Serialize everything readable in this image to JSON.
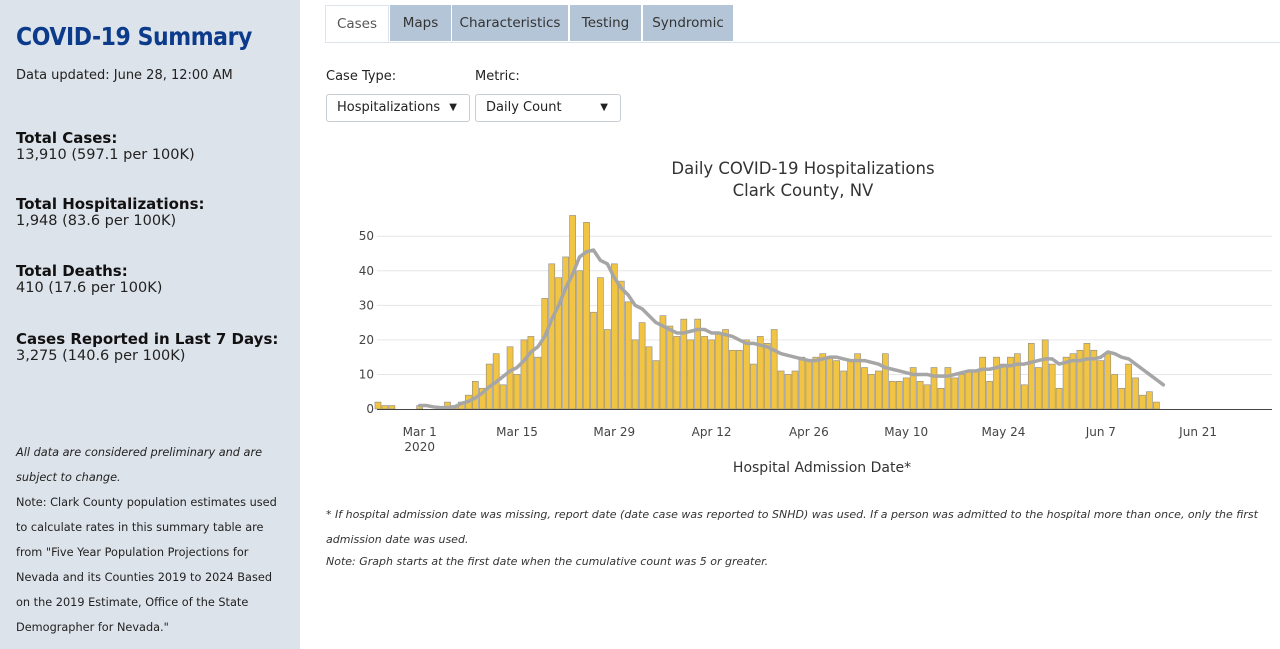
{
  "sidebar": {
    "title": "COVID-19 Summary",
    "updated": "Data updated: June 28, 12:00 AM",
    "stats": [
      {
        "label": "Total Cases:",
        "value": "13,910 (597.1 per 100K)"
      },
      {
        "label": "Total Hospitalizations:",
        "value": "1,948 (83.6 per 100K)"
      },
      {
        "label": "Total Deaths:",
        "value": "410 (17.6 per 100K)"
      },
      {
        "label": "Cases Reported in Last 7 Days:",
        "value": "3,275 (140.6 per 100K)"
      }
    ],
    "preliminary": "All data are considered preliminary and are subject to change.",
    "population_note": "Note: Clark County population estimates used to calculate rates in this summary table are from \"Five Year Population Projections for Nevada and its Counties 2019 to 2024 Based on the 2019 Estimate, Office of the State Demographer for Nevada.\""
  },
  "tabs": [
    "Cases",
    "Maps",
    "Characteristics",
    "Testing",
    "Syndromic"
  ],
  "active_tab": "Cases",
  "controls": {
    "case_type_label": "Case Type:",
    "case_type_value": "Hospitalizations",
    "metric_label": "Metric:",
    "metric_value": "Daily Count"
  },
  "footnote": "* If hospital admission date was missing, report date (date case was reported to SNHD) was used. If a person was admitted to the hospital more than once, only the first admission date was used.",
  "footnote2": "Note: Graph starts at the first date when the cumulative count was 5 or greater.",
  "colors": {
    "bar": "#f2c443",
    "bar_stroke": "#8a8a8a",
    "line": "#a6a6a6",
    "title": "#0c3b8c",
    "sidebar_bg": "#dde3ea",
    "tab_bg": "#b4c5d8"
  },
  "chart_data": {
    "type": "bar",
    "title": "Daily COVID-19 Hospitalizations",
    "subtitle": "Clark County, NV",
    "xlabel": "Hospital Admission Date*",
    "ylabel": "",
    "ylim": [
      0,
      57
    ],
    "yticks": [
      0,
      10,
      20,
      30,
      40,
      50
    ],
    "x_start": "2020-02-24",
    "xticks": [
      {
        "label": "Mar 1",
        "sub": "2020",
        "date": "2020-03-01"
      },
      {
        "label": "Mar 15",
        "sub": "",
        "date": "2020-03-15"
      },
      {
        "label": "Mar 29",
        "sub": "",
        "date": "2020-03-29"
      },
      {
        "label": "Apr 12",
        "sub": "",
        "date": "2020-04-12"
      },
      {
        "label": "Apr 26",
        "sub": "",
        "date": "2020-04-26"
      },
      {
        "label": "May 10",
        "sub": "",
        "date": "2020-05-10"
      },
      {
        "label": "May 24",
        "sub": "",
        "date": "2020-05-24"
      },
      {
        "label": "Jun 7",
        "sub": "",
        "date": "2020-06-07"
      },
      {
        "label": "Jun 21",
        "sub": "",
        "date": "2020-06-21"
      }
    ],
    "series": [
      {
        "name": "Daily Count",
        "kind": "bar",
        "values": [
          2,
          1,
          1,
          0,
          0,
          0,
          1,
          0,
          0,
          0,
          2,
          1,
          2,
          4,
          8,
          6,
          13,
          16,
          7,
          18,
          10,
          20,
          21,
          15,
          32,
          42,
          38,
          44,
          56,
          40,
          54,
          28,
          38,
          23,
          42,
          37,
          31,
          20,
          25,
          18,
          14,
          27,
          24,
          21,
          26,
          20,
          26,
          21,
          20,
          22,
          23,
          17,
          17,
          20,
          13,
          21,
          19,
          23,
          11,
          10,
          11,
          15,
          14,
          15,
          16,
          15,
          14,
          11,
          14,
          16,
          12,
          10,
          11,
          16,
          8,
          8,
          9,
          12,
          8,
          7,
          12,
          6,
          12,
          9,
          10,
          11,
          11,
          15,
          8,
          15,
          13,
          15,
          16,
          7,
          19,
          12,
          20,
          13,
          6,
          15,
          16,
          17,
          19,
          17,
          14,
          16,
          10,
          6,
          13,
          9,
          4,
          5,
          2
        ]
      },
      {
        "name": "7-Day Average",
        "kind": "line",
        "values": [
          null,
          null,
          null,
          null,
          null,
          null,
          1,
          1,
          0.6,
          0.4,
          0.4,
          0.6,
          1.6,
          2.2,
          3.2,
          4.6,
          6.4,
          7.8,
          9.4,
          11,
          12,
          14,
          16.5,
          18,
          21,
          26,
          30,
          35,
          39,
          44,
          45.5,
          46,
          43,
          42,
          38,
          35,
          33,
          30,
          29,
          27,
          25,
          24,
          23,
          22,
          22,
          22.5,
          23,
          23,
          22,
          22,
          21.5,
          21,
          20,
          19,
          19,
          18.5,
          18,
          17,
          16,
          15.5,
          15,
          14.5,
          14,
          14,
          14.5,
          15,
          15,
          14.5,
          14,
          14,
          14,
          13.5,
          13,
          12,
          11.5,
          11,
          10.5,
          10,
          10,
          10,
          9.5,
          9.5,
          9.5,
          10,
          10.5,
          11,
          11,
          11.5,
          11.5,
          12,
          12.5,
          12.5,
          13,
          13,
          13.5,
          14,
          14.5,
          14.5,
          13,
          13.5,
          14,
          14,
          14.5,
          14.5,
          15,
          16.5,
          16,
          15,
          14.5,
          13,
          11.5,
          10,
          8.5,
          7
        ]
      }
    ]
  }
}
